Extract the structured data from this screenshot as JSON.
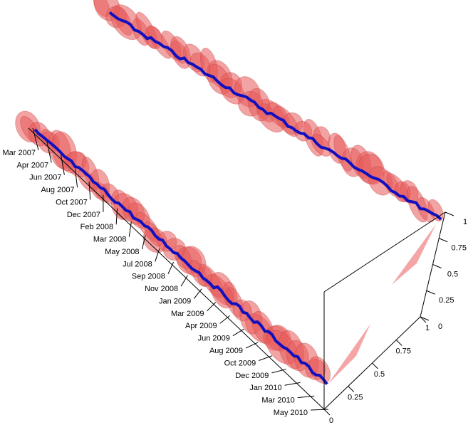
{
  "chart_data": {
    "type": "surface3d",
    "xticks": [
      "Mar 2007",
      "Apr 2007",
      "Jun 2007",
      "Aug 2007",
      "Oct 2007",
      "Dec 2007",
      "Feb 2008",
      "Mar 2008",
      "May 2008",
      "Jul 2008",
      "Sep 2008",
      "Nov 2008",
      "Jan 2009",
      "Mar 2009",
      "Apr 2009",
      "Jun 2009",
      "Aug 2009",
      "Oct 2009",
      "Dec 2009",
      "Jan 2010",
      "Mar 2010",
      "May 2010"
    ],
    "ylim": [
      0,
      1
    ],
    "yticks": [
      0,
      0.25,
      0.5,
      0.75,
      1
    ],
    "zlim": [
      0,
      1
    ],
    "zticks": [
      0,
      0.25,
      0.5,
      0.75,
      1
    ]
  }
}
